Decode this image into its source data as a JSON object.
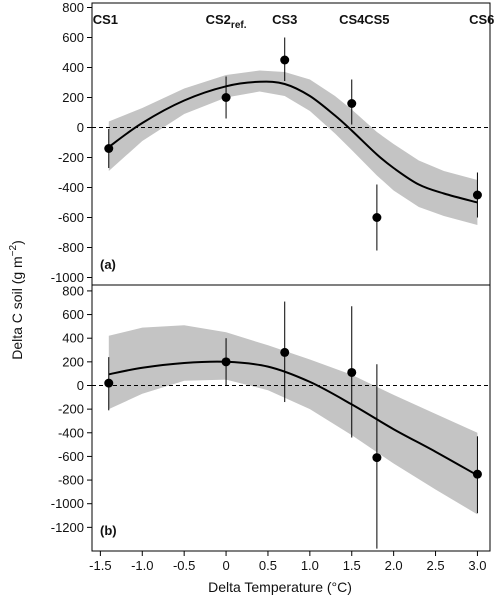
{
  "chart_data": [
    {
      "type": "scatter",
      "panel_label": "(a)",
      "ylabel_main": "Delta C soil (g m",
      "ylabel_sup": "−2",
      "ylabel_close": ")",
      "ylim": [
        -1050,
        830
      ],
      "yticks": [
        -1000,
        -800,
        -600,
        -400,
        -200,
        0,
        200,
        400,
        600,
        800
      ],
      "reference_line_y": 0,
      "site_labels": [
        {
          "text": "CS1",
          "sub": "",
          "x": -1.4
        },
        {
          "text": "CS2",
          "sub": "ref.",
          "x": 0.0
        },
        {
          "text": "CS3",
          "sub": "",
          "x": 0.7
        },
        {
          "text": "CS4",
          "sub": "",
          "x": 1.5
        },
        {
          "text": "CS5",
          "sub": "",
          "x": 1.8
        },
        {
          "text": "CS6",
          "sub": "",
          "x": 3.0
        }
      ],
      "points": [
        {
          "x": -1.4,
          "y": -140,
          "ylo": -270,
          "yhi": -10
        },
        {
          "x": 0.0,
          "y": 200,
          "ylo": 60,
          "yhi": 340
        },
        {
          "x": 0.7,
          "y": 450,
          "ylo": 310,
          "yhi": 600
        },
        {
          "x": 1.5,
          "y": 160,
          "ylo": 20,
          "yhi": 320
        },
        {
          "x": 1.8,
          "y": -600,
          "ylo": -820,
          "yhi": -380
        },
        {
          "x": 3.0,
          "y": -450,
          "ylo": -600,
          "yhi": -300
        }
      ],
      "fit": {
        "x": [
          -1.4,
          -1.0,
          -0.5,
          0.0,
          0.4,
          0.7,
          1.0,
          1.3,
          1.5,
          1.8,
          2.0,
          2.3,
          2.6,
          3.0
        ],
        "y": [
          -130,
          30,
          180,
          275,
          305,
          290,
          210,
          80,
          -20,
          -180,
          -270,
          -380,
          -440,
          -500
        ],
        "lo": [
          -290,
          -90,
          90,
          200,
          240,
          210,
          110,
          -40,
          -150,
          -320,
          -420,
          -530,
          -590,
          -650
        ],
        "hi": [
          40,
          130,
          260,
          350,
          380,
          370,
          320,
          210,
          120,
          -30,
          -110,
          -220,
          -290,
          -350
        ]
      }
    },
    {
      "type": "scatter",
      "panel_label": "(b)",
      "ylim": [
        -1400,
        850
      ],
      "yticks": [
        -1200,
        -1000,
        -800,
        -600,
        -400,
        -200,
        0,
        200,
        400,
        600,
        800
      ],
      "reference_line_y": 0,
      "xlabel": "Delta Temperature (°C)",
      "xlim": [
        -1.6,
        3.15
      ],
      "xticks": [
        "-1.5",
        "-1.0",
        "-0.5",
        "0",
        "0.5",
        "1.0",
        "1.5",
        "2.0",
        "2.5",
        "3.0"
      ],
      "points": [
        {
          "x": -1.4,
          "y": 20,
          "ylo": -210,
          "yhi": 240
        },
        {
          "x": 0.0,
          "y": 200,
          "ylo": 0,
          "yhi": 400
        },
        {
          "x": 0.7,
          "y": 280,
          "ylo": -140,
          "yhi": 710
        },
        {
          "x": 1.5,
          "y": 110,
          "ylo": -440,
          "yhi": 670
        },
        {
          "x": 1.8,
          "y": -610,
          "ylo": -1380,
          "yhi": 180
        },
        {
          "x": 3.0,
          "y": -750,
          "ylo": -1080,
          "yhi": -430
        }
      ],
      "fit": {
        "x": [
          -1.4,
          -1.0,
          -0.5,
          0.0,
          0.5,
          1.0,
          1.5,
          2.0,
          2.5,
          3.0
        ],
        "y": [
          95,
          150,
          190,
          200,
          160,
          30,
          -160,
          -370,
          -560,
          -760
        ],
        "lo": [
          -200,
          -70,
          40,
          50,
          -40,
          -200,
          -420,
          -660,
          -880,
          -1090
        ],
        "hi": [
          420,
          490,
          510,
          450,
          340,
          220,
          90,
          -80,
          -240,
          -400
        ]
      }
    }
  ]
}
